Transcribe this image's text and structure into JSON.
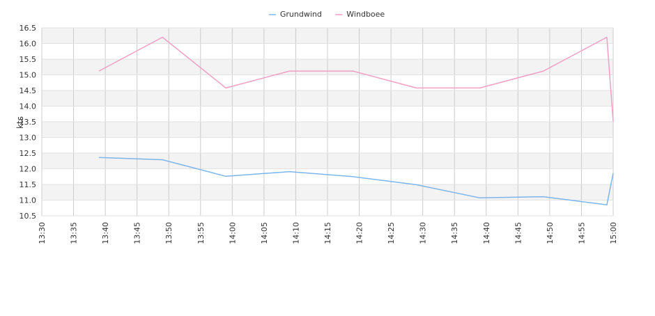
{
  "chart_data": {
    "type": "line",
    "ylabel": "kts",
    "legend_placement": "top-center",
    "x": [
      "13:30",
      "13:35",
      "13:40",
      "13:45",
      "13:50",
      "13:55",
      "14:00",
      "14:05",
      "14:10",
      "14:15",
      "14:20",
      "14:25",
      "14:30",
      "14:35",
      "14:40",
      "14:45",
      "14:50",
      "14:55",
      "15:00"
    ],
    "y_ticks": [
      "10.5",
      "11.0",
      "11.5",
      "12.0",
      "12.5",
      "13.0",
      "13.5",
      "14.0",
      "14.5",
      "15.0",
      "15.5",
      "16.0",
      "16.5"
    ],
    "ylim": [
      10.5,
      16.5
    ],
    "xlim": [
      "13:30",
      "15:00"
    ],
    "grid": true,
    "series": [
      {
        "name": "Grundwind",
        "color": "#7cb5ec",
        "points": [
          [
            "13:39",
            12.36
          ],
          [
            "13:49",
            12.29
          ],
          [
            "13:59",
            11.76
          ],
          [
            "14:09",
            11.91
          ],
          [
            "14:19",
            11.75
          ],
          [
            "14:29",
            11.49
          ],
          [
            "14:39",
            11.07
          ],
          [
            "14:49",
            11.11
          ],
          [
            "14:59",
            10.85
          ],
          [
            "15:00",
            11.86
          ]
        ]
      },
      {
        "name": "Windboee",
        "color": "#f19ec2",
        "points": [
          [
            "13:39",
            15.12
          ],
          [
            "13:49",
            16.2
          ],
          [
            "13:59",
            14.58
          ],
          [
            "14:09",
            15.12
          ],
          [
            "14:19",
            15.12
          ],
          [
            "14:29",
            14.58
          ],
          [
            "14:39",
            14.58
          ],
          [
            "14:49",
            15.12
          ],
          [
            "14:59",
            16.2
          ],
          [
            "15:00",
            13.5
          ]
        ]
      }
    ]
  }
}
